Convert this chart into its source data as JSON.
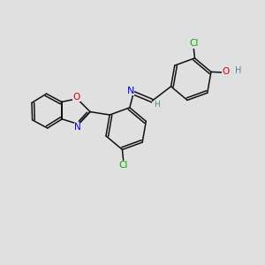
{
  "background_color": "#e0e0e0",
  "bond_color": "#111111",
  "atom_colors": {
    "N": "#0000ee",
    "O": "#dd0000",
    "Cl": "#00aa00",
    "H_imine": "#448888",
    "H_oh": "#448888"
  },
  "figsize": [
    3.0,
    3.0
  ],
  "dpi": 100,
  "lw": 1.1
}
